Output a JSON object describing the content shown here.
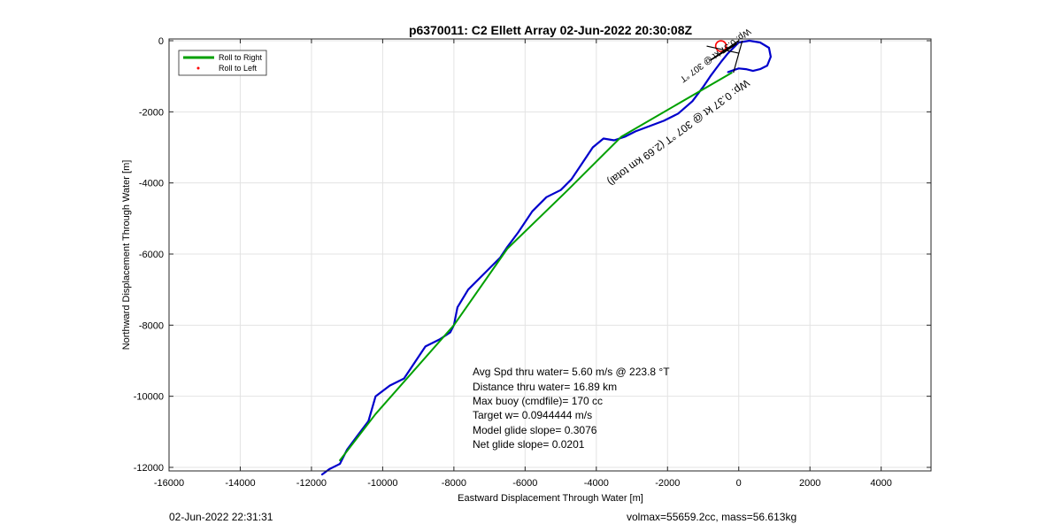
{
  "chart_data": {
    "type": "line",
    "title": "p6370011: C2 Ellett Array 02-Jun-2022 20:30:08Z",
    "xlabel": "Eastward Displacement Through Water [m]",
    "ylabel": "Northward Displacement Through Water [m]",
    "xlim": [
      -16000,
      5400
    ],
    "ylim": [
      -12100,
      50
    ],
    "xticks": [
      -16000,
      -14000,
      -12000,
      -10000,
      -8000,
      -6000,
      -4000,
      -2000,
      0,
      2000,
      4000
    ],
    "yticks": [
      0,
      -2000,
      -4000,
      -6000,
      -8000,
      -10000,
      -12000
    ],
    "grid": true,
    "legend_position": "top-left",
    "legend": [
      {
        "label": "Roll to Right",
        "color": "#00a000",
        "style": "line"
      },
      {
        "label": "Roll to Left",
        "color": "#ff0000",
        "style": "marker"
      }
    ],
    "series": [
      {
        "color": "#0000cc",
        "x": [
          -11700,
          -11500,
          -11200,
          -11000,
          -10700,
          -10400,
          -10200,
          -9800,
          -9400,
          -9000,
          -8800,
          -8400,
          -8100,
          -8000,
          -7900,
          -7600,
          -7100,
          -6700,
          -6500,
          -6200,
          -5800,
          -5400,
          -5000,
          -4700,
          -4400,
          -4100,
          -3800,
          -3500,
          -3200,
          -2900,
          -2500,
          -2100,
          -1700,
          -1300,
          -1000,
          -800,
          -650,
          -500,
          -300,
          0,
          300,
          600,
          850,
          900,
          800,
          600,
          400,
          200,
          0,
          -150,
          -300
        ],
        "y": [
          -12200,
          -12050,
          -11900,
          -11500,
          -11100,
          -10700,
          -10000,
          -9700,
          -9500,
          -8900,
          -8600,
          -8400,
          -8200,
          -8000,
          -7500,
          -7000,
          -6500,
          -6100,
          -5800,
          -5400,
          -4800,
          -4400,
          -4200,
          -3900,
          -3450,
          -3000,
          -2750,
          -2800,
          -2700,
          -2550,
          -2400,
          -2250,
          -2050,
          -1700,
          -1300,
          -1000,
          -800,
          -600,
          -350,
          -50,
          0,
          -50,
          -200,
          -450,
          -700,
          -800,
          -850,
          -800,
          -780,
          -830,
          -880
        ]
      },
      {
        "color": "#00a000",
        "x": [
          -11200,
          -10200,
          -8000,
          -6500,
          -4800,
          -3300,
          -200
        ],
        "y": [
          -11800,
          -10500,
          -8000,
          -5850,
          -4200,
          -2700,
          -900
        ]
      }
    ],
    "point_marker": {
      "x": -500,
      "y": -150,
      "color": "#ff0000"
    },
    "annotations": [
      {
        "text": "Wp: 0.37 kt @ 307 °T (2.69 km total)",
        "x": -1750,
        "y": -2500,
        "angle": 36
      },
      {
        "text": "Wp: 0.37 kt @ 307 °T",
        "x": -700,
        "y": -350,
        "angle": 36
      }
    ],
    "text_box": [
      "Avg Spd thru water=  5.60 m/s @ 223.8 °T",
      "Distance thru water= 16.89 km",
      "Max buoy (cmdfile)= 170 cc",
      "Target w= 0.0944444 m/s",
      "Model glide slope= 0.3076",
      "Net glide slope= 0.0201"
    ]
  },
  "footer": {
    "left": "02-Jun-2022 22:31:31",
    "right": "volmax=55659.2cc, mass=56.613kg"
  }
}
